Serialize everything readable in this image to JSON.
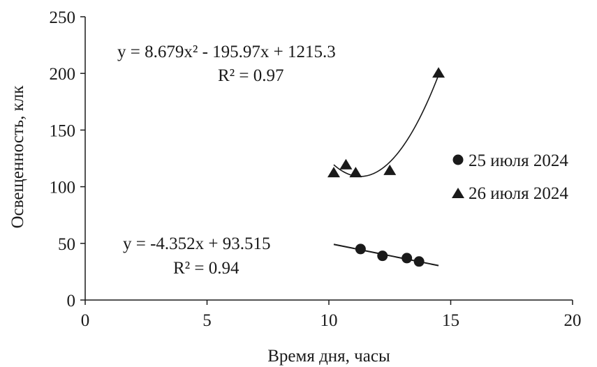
{
  "chart_data": {
    "type": "scatter",
    "title": "",
    "xlabel": "Время дня, часы",
    "ylabel": "Освещенность, клк",
    "xlim": [
      0,
      20
    ],
    "ylim": [
      0,
      250
    ],
    "xticks": [
      0,
      5,
      10,
      15,
      20
    ],
    "yticks": [
      0,
      50,
      100,
      150,
      200,
      250
    ],
    "grid": false,
    "legend_position": "right",
    "series": [
      {
        "name": "25 июля 2024",
        "marker": "circle",
        "color": "#1a1a1a",
        "points": [
          {
            "x": 11.3,
            "y": 45
          },
          {
            "x": 12.2,
            "y": 39
          },
          {
            "x": 13.2,
            "y": 37
          },
          {
            "x": 13.7,
            "y": 34
          }
        ],
        "trendline": {
          "type": "linear",
          "coefficients": [
            -4.352,
            93.515
          ],
          "x_range": [
            10.2,
            14.5
          ],
          "equation": "y = -4.352x + 93.515",
          "r2": "R² = 0.94"
        }
      },
      {
        "name": "26 июля 2024",
        "marker": "triangle",
        "color": "#1a1a1a",
        "points": [
          {
            "x": 10.2,
            "y": 112
          },
          {
            "x": 10.7,
            "y": 119
          },
          {
            "x": 11.1,
            "y": 112
          },
          {
            "x": 12.5,
            "y": 114
          },
          {
            "x": 14.5,
            "y": 200
          }
        ],
        "trendline": {
          "type": "polynomial",
          "coefficients": [
            8.679,
            -195.97,
            1215.3
          ],
          "x_range": [
            10.2,
            14.5
          ],
          "equation": "y = 8.679x² - 195.97x + 1215.3",
          "r2": "R² = 0.97"
        }
      }
    ]
  }
}
